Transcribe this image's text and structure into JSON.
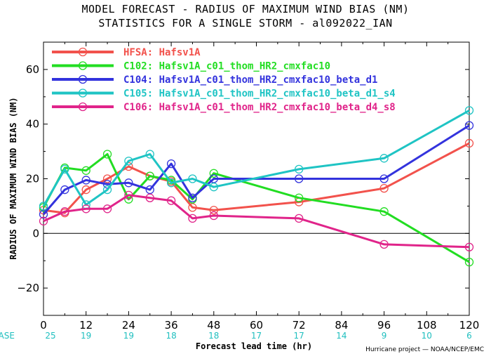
{
  "chart_data": {
    "type": "line",
    "title": "MODEL FORECAST - RADIUS OF MAXIMUM WIND BIAS (NM)",
    "subtitle": "STATISTICS FOR A SINGLE STORM - al092022_IAN",
    "xlabel": "Forecast lead time (hr)",
    "ylabel": "RADIUS OF MAXIMUM WIND BIAS (NM)",
    "xlim": [
      0,
      120
    ],
    "ylim": [
      -30,
      70
    ],
    "xticks": [
      0,
      12,
      24,
      36,
      48,
      60,
      72,
      84,
      96,
      108,
      120
    ],
    "yticks": [
      -20,
      0,
      20,
      40,
      60
    ],
    "legend_position": "top-left",
    "series": [
      {
        "name": "HFSA: Hafsv1A",
        "color": "#f2524c",
        "x": [
          0,
          6,
          12,
          18,
          24,
          30,
          36,
          42,
          48,
          72,
          96,
          120
        ],
        "y": [
          8.5,
          7.5,
          16,
          20,
          24.5,
          21,
          19,
          9.5,
          8.5,
          11.5,
          16.5,
          33
        ]
      },
      {
        "name": "C102: Hafsv1A_c01_thom_HR2_cmxfac10",
        "color": "#22dd22",
        "x": [
          0,
          6,
          12,
          18,
          24,
          30,
          36,
          42,
          48,
          72,
          96,
          120
        ],
        "y": [
          9.5,
          24,
          23,
          29,
          12.5,
          21,
          19.5,
          12.5,
          22,
          13,
          8,
          -10.5
        ]
      },
      {
        "name": "C104: Hafsv1A_c01_thom_HR2_cmxfac10_beta_d1",
        "color": "#3333dd",
        "x": [
          0,
          6,
          12,
          18,
          24,
          30,
          36,
          42,
          48,
          72,
          96,
          120
        ],
        "y": [
          7,
          16,
          19.5,
          18,
          18.5,
          16,
          25.5,
          13,
          20,
          20,
          20,
          39.5
        ]
      },
      {
        "name": "C105: Hafsv1A_c01_thom_HR2_cmxfac10_beta_d1_s4",
        "color": "#1fc4c4",
        "x": [
          0,
          6,
          12,
          18,
          24,
          30,
          36,
          42,
          48,
          72,
          96,
          120
        ],
        "y": [
          10,
          23.5,
          10.5,
          16,
          26.5,
          29,
          18.5,
          20,
          17,
          23.5,
          27.5,
          45
        ]
      },
      {
        "name": "C106: Hafsv1A_c01_thom_HR2_cmxfac10_beta_d4_s8",
        "color": "#e0248a",
        "x": [
          0,
          6,
          12,
          18,
          24,
          30,
          36,
          42,
          48,
          72,
          96,
          120
        ],
        "y": [
          4.5,
          8,
          9,
          9,
          14,
          13,
          12,
          5.5,
          6.5,
          5.5,
          -4,
          -5
        ]
      }
    ],
    "case_label": "#CASE",
    "case_counts": [
      {
        "x": 0,
        "n": "25"
      },
      {
        "x": 12,
        "n": "19"
      },
      {
        "x": 24,
        "n": "19"
      },
      {
        "x": 36,
        "n": "18"
      },
      {
        "x": 48,
        "n": "18"
      },
      {
        "x": 60,
        "n": "17"
      },
      {
        "x": 72,
        "n": "17"
      },
      {
        "x": 84,
        "n": "14"
      },
      {
        "x": 96,
        "n": "9"
      },
      {
        "x": 108,
        "n": "10"
      },
      {
        "x": 120,
        "n": "6"
      }
    ],
    "credit": "Hurricane project — NOAA/NCEP/EMC"
  }
}
